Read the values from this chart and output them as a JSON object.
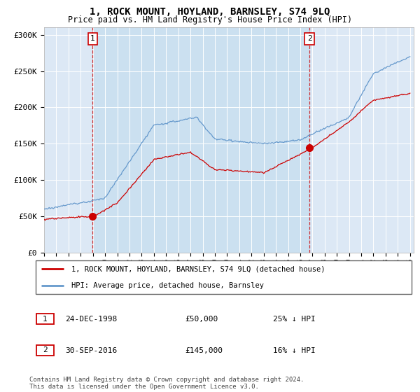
{
  "title": "1, ROCK MOUNT, HOYLAND, BARNSLEY, S74 9LQ",
  "subtitle": "Price paid vs. HM Land Registry's House Price Index (HPI)",
  "ylim": [
    0,
    310000
  ],
  "yticks": [
    0,
    50000,
    100000,
    150000,
    200000,
    250000,
    300000
  ],
  "ytick_labels": [
    "£0",
    "£50K",
    "£100K",
    "£150K",
    "£200K",
    "£250K",
    "£300K"
  ],
  "hpi_color": "#6699cc",
  "price_color": "#cc0000",
  "sale1_year": 1998.98,
  "sale1_price": 50000,
  "sale2_year": 2016.75,
  "sale2_price": 145000,
  "legend_line1": "1, ROCK MOUNT, HOYLAND, BARNSLEY, S74 9LQ (detached house)",
  "legend_line2": "HPI: Average price, detached house, Barnsley",
  "table_row1": [
    "1",
    "24-DEC-1998",
    "£50,000",
    "25% ↓ HPI"
  ],
  "table_row2": [
    "2",
    "30-SEP-2016",
    "£145,000",
    "16% ↓ HPI"
  ],
  "footer": "Contains HM Land Registry data © Crown copyright and database right 2024.\nThis data is licensed under the Open Government Licence v3.0.",
  "plot_bg": "#dce8f5",
  "shade_color": "#c8dff0"
}
